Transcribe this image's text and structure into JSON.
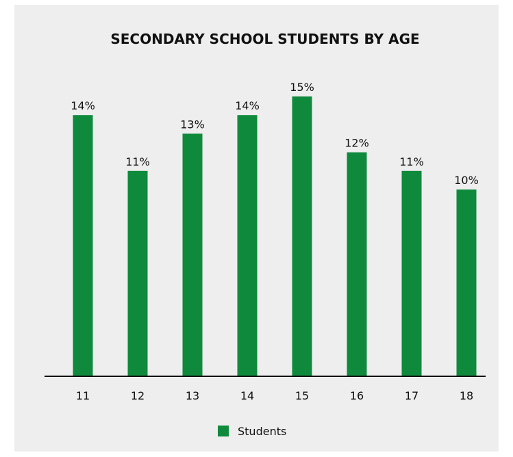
{
  "chart_data": {
    "type": "bar",
    "title": "SECONDARY SCHOOL STUDENTS BY AGE",
    "xlabel": "",
    "ylabel": "",
    "categories": [
      "11",
      "12",
      "13",
      "14",
      "15",
      "16",
      "17",
      "18"
    ],
    "series": [
      {
        "name": "Students",
        "values": [
          14,
          11,
          13,
          14,
          15,
          12,
          11,
          10
        ],
        "labels": [
          "14%",
          "11%",
          "13%",
          "14%",
          "15%",
          "12%",
          "11%",
          "10%"
        ],
        "color": "#0f8a3c"
      }
    ],
    "ylim": [
      0,
      15
    ],
    "grid": false,
    "legend": "bottom-center"
  },
  "colors": {
    "bar": "#0f8a3c",
    "axis": "#111111",
    "background": "#eeeeee"
  }
}
